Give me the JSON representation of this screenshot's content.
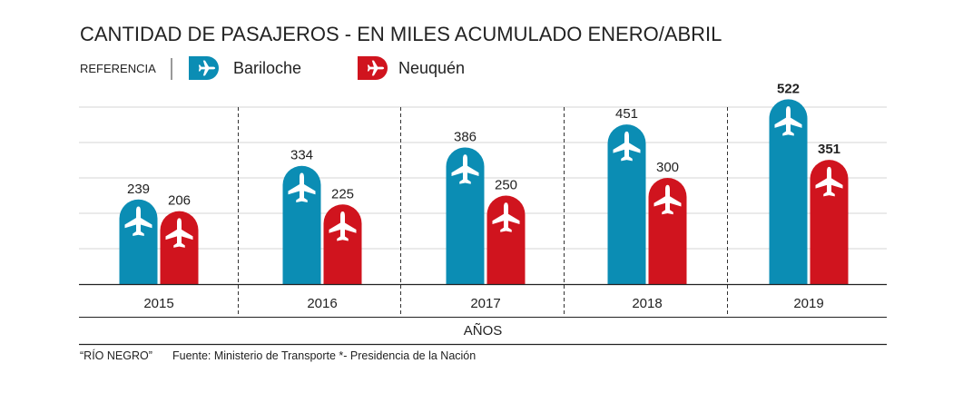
{
  "chart_data": {
    "type": "bar",
    "title": "CANTIDAD DE PASAJEROS - EN MILES ACUMULADO ENERO/ABRIL",
    "legend_label": "REFERENCIA",
    "legend_placement": "top-left",
    "categories": [
      "2015",
      "2016",
      "2017",
      "2018",
      "2019"
    ],
    "series": [
      {
        "name": "Bariloche",
        "values": [
          239,
          334,
          386,
          451,
          522
        ],
        "color": "#0b8db4"
      },
      {
        "name": "Neuquén",
        "values": [
          206,
          225,
          250,
          300,
          351
        ],
        "color": "#d0141e"
      }
    ],
    "xlabel": "AÑOS",
    "ylabel": "",
    "ylim": [
      0,
      500
    ],
    "grid": true,
    "grid_step": 100,
    "bar_icon": "airplane-icon",
    "highlight_last_category": true
  },
  "footer": {
    "source_left": "“RÍO NEGRO”",
    "source_right": "Fuente: Ministerio de Transporte *- Presidencia de la Nación"
  }
}
